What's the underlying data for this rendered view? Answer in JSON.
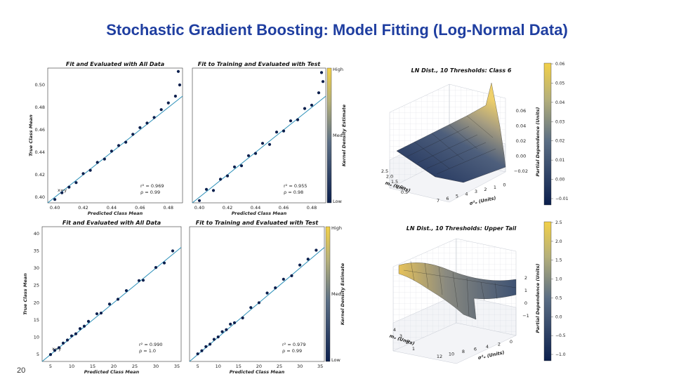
{
  "title": "Stochastic Gradient Boosting: Model Fitting (Log-Normal Data)",
  "page_number": "20",
  "chart_data": [
    {
      "type": "scatter",
      "title": "Fit and Evaluated with All Data",
      "xlabel": "Predicted Class Mean",
      "ylabel": "True Class Mean",
      "xlim": [
        0.395,
        0.49
      ],
      "ylim": [
        0.395,
        0.515
      ],
      "xticks": [
        "0.40",
        "0.42",
        "0.44",
        "0.46",
        "0.48"
      ],
      "yticks": [
        "0.40",
        "0.42",
        "0.44",
        "0.46",
        "0.48",
        "0.50"
      ],
      "line_label": "x=y",
      "stats": [
        "r² = 0.969",
        "ρ = 0.99"
      ],
      "approx_points": [
        [
          0.4,
          0.398
        ],
        [
          0.405,
          0.404
        ],
        [
          0.41,
          0.409
        ],
        [
          0.415,
          0.413
        ],
        [
          0.42,
          0.421
        ],
        [
          0.425,
          0.424
        ],
        [
          0.43,
          0.431
        ],
        [
          0.435,
          0.434
        ],
        [
          0.44,
          0.441
        ],
        [
          0.445,
          0.446
        ],
        [
          0.45,
          0.449
        ],
        [
          0.455,
          0.456
        ],
        [
          0.46,
          0.462
        ],
        [
          0.465,
          0.466
        ],
        [
          0.47,
          0.471
        ],
        [
          0.475,
          0.478
        ],
        [
          0.48,
          0.484
        ],
        [
          0.485,
          0.49
        ],
        [
          0.488,
          0.5
        ],
        [
          0.487,
          0.512
        ]
      ]
    },
    {
      "type": "scatter",
      "title": "Fit to Training and Evaluated with Test",
      "xlabel": "Predicted Class Mean",
      "ylabel": "",
      "xlim": [
        0.395,
        0.49
      ],
      "ylim": [
        0.395,
        0.515
      ],
      "xticks": [
        "0.40",
        "0.42",
        "0.44",
        "0.46",
        "0.48"
      ],
      "yticks": [],
      "line_label": "",
      "stats": [
        "r² = 0.955",
        "ρ = 0.98"
      ],
      "colorbar": {
        "label": "Kernel Density Estimate",
        "ticks": [
          "High",
          "Med.",
          "Low"
        ]
      },
      "approx_points": [
        [
          0.4,
          0.397
        ],
        [
          0.405,
          0.407
        ],
        [
          0.41,
          0.406
        ],
        [
          0.415,
          0.416
        ],
        [
          0.42,
          0.419
        ],
        [
          0.425,
          0.427
        ],
        [
          0.43,
          0.428
        ],
        [
          0.435,
          0.437
        ],
        [
          0.44,
          0.439
        ],
        [
          0.445,
          0.448
        ],
        [
          0.45,
          0.447
        ],
        [
          0.455,
          0.458
        ],
        [
          0.46,
          0.459
        ],
        [
          0.465,
          0.468
        ],
        [
          0.47,
          0.469
        ],
        [
          0.475,
          0.479
        ],
        [
          0.48,
          0.482
        ],
        [
          0.485,
          0.493
        ],
        [
          0.488,
          0.503
        ],
        [
          0.487,
          0.511
        ]
      ]
    },
    {
      "type": "scatter",
      "title": "Fit and Evaluated with All Data",
      "xlabel": "Predicted Class Mean",
      "ylabel": "True Class Mean",
      "xlim": [
        3,
        36
      ],
      "ylim": [
        3,
        42
      ],
      "xticks": [
        "5",
        "10",
        "15",
        "20",
        "25",
        "30",
        "35"
      ],
      "yticks": [
        "5",
        "10",
        "15",
        "20",
        "25",
        "30",
        "35",
        "40"
      ],
      "line_label": "x=y",
      "stats": [
        "r² = 0.990",
        "ρ = 1.0"
      ],
      "approx_points": [
        [
          5,
          5
        ],
        [
          6,
          6.2
        ],
        [
          7,
          7
        ],
        [
          8,
          8.3
        ],
        [
          9,
          9.2
        ],
        [
          10,
          10.4
        ],
        [
          11,
          11
        ],
        [
          12,
          12.5
        ],
        [
          13,
          13.2
        ],
        [
          14,
          14.6
        ],
        [
          16,
          16.8
        ],
        [
          17,
          17
        ],
        [
          19,
          19.6
        ],
        [
          21,
          21
        ],
        [
          23,
          23.5
        ],
        [
          26,
          26.4
        ],
        [
          27,
          26.5
        ],
        [
          30,
          30.2
        ],
        [
          32,
          31.5
        ],
        [
          34,
          35
        ]
      ]
    },
    {
      "type": "scatter",
      "title": "Fit to Training and Evaluated with Test",
      "xlabel": "Predicted Class Mean",
      "ylabel": "",
      "xlim": [
        3,
        36
      ],
      "ylim": [
        3,
        42
      ],
      "xticks": [
        "5",
        "10",
        "15",
        "20",
        "25",
        "30",
        "35"
      ],
      "yticks": [],
      "line_label": "",
      "stats": [
        "r² = 0.979",
        "ρ = 0.99"
      ],
      "colorbar": {
        "label": "Kernel Density Estimate",
        "ticks": [
          "High",
          "Med.",
          "Low"
        ]
      },
      "approx_points": [
        [
          5,
          5.2
        ],
        [
          6,
          6.1
        ],
        [
          7,
          7.3
        ],
        [
          8,
          8
        ],
        [
          9,
          9.4
        ],
        [
          10,
          10.1
        ],
        [
          11,
          11.6
        ],
        [
          12,
          12.2
        ],
        [
          13,
          13.8
        ],
        [
          14,
          14.2
        ],
        [
          16,
          15.6
        ],
        [
          18,
          18.6
        ],
        [
          20,
          20
        ],
        [
          22,
          22.8
        ],
        [
          24,
          24.3
        ],
        [
          26,
          26.8
        ],
        [
          28,
          27.8
        ],
        [
          30,
          30.9
        ],
        [
          32,
          32.6
        ],
        [
          34,
          35.2
        ]
      ]
    },
    {
      "type": "surface",
      "title": "LN Dist., 10 Thresholds: Class 6",
      "xlabel": "σ²ₑ (Units)",
      "ylabel": "mₑ (Units)",
      "zlabel": "Partial Dependence (Units)",
      "xticks": [
        "7",
        "6",
        "5",
        "4",
        "3",
        "2",
        "1",
        "0"
      ],
      "yticks": [
        "2.5",
        "2.0",
        "1.5",
        "1.0",
        "0.5"
      ],
      "zticks": [
        "0.06",
        "0.04",
        "0.02",
        "0.00",
        "−0.02"
      ],
      "colorbar": {
        "ticks": [
          "0.06",
          "0.05",
          "0.04",
          "0.03",
          "0.02",
          "0.01",
          "0.00",
          "−0.01"
        ]
      }
    },
    {
      "type": "surface",
      "title": "LN Dist., 10 Thresholds: Upper Tail",
      "xlabel": "σ²ₑ (Units)",
      "ylabel": "mₑ (Units)",
      "zlabel": "Partial Dependence (Units)",
      "xticks": [
        "12",
        "10",
        "8",
        "6",
        "4",
        "2",
        "0"
      ],
      "yticks": [
        "4",
        "3",
        "2",
        "1"
      ],
      "zticks": [
        "2",
        "1",
        "0",
        "−1"
      ],
      "colorbar": {
        "ticks": [
          "2.5",
          "2.0",
          "1.5",
          "1.0",
          "0.5",
          "0.0",
          "−0.5",
          "−1.0"
        ]
      }
    }
  ],
  "colors": {
    "title": "#1f3ea0",
    "points": "#0b1f4d",
    "line": "#2a8fb8",
    "high": "#f2d048",
    "low": "#0b1f4d"
  }
}
